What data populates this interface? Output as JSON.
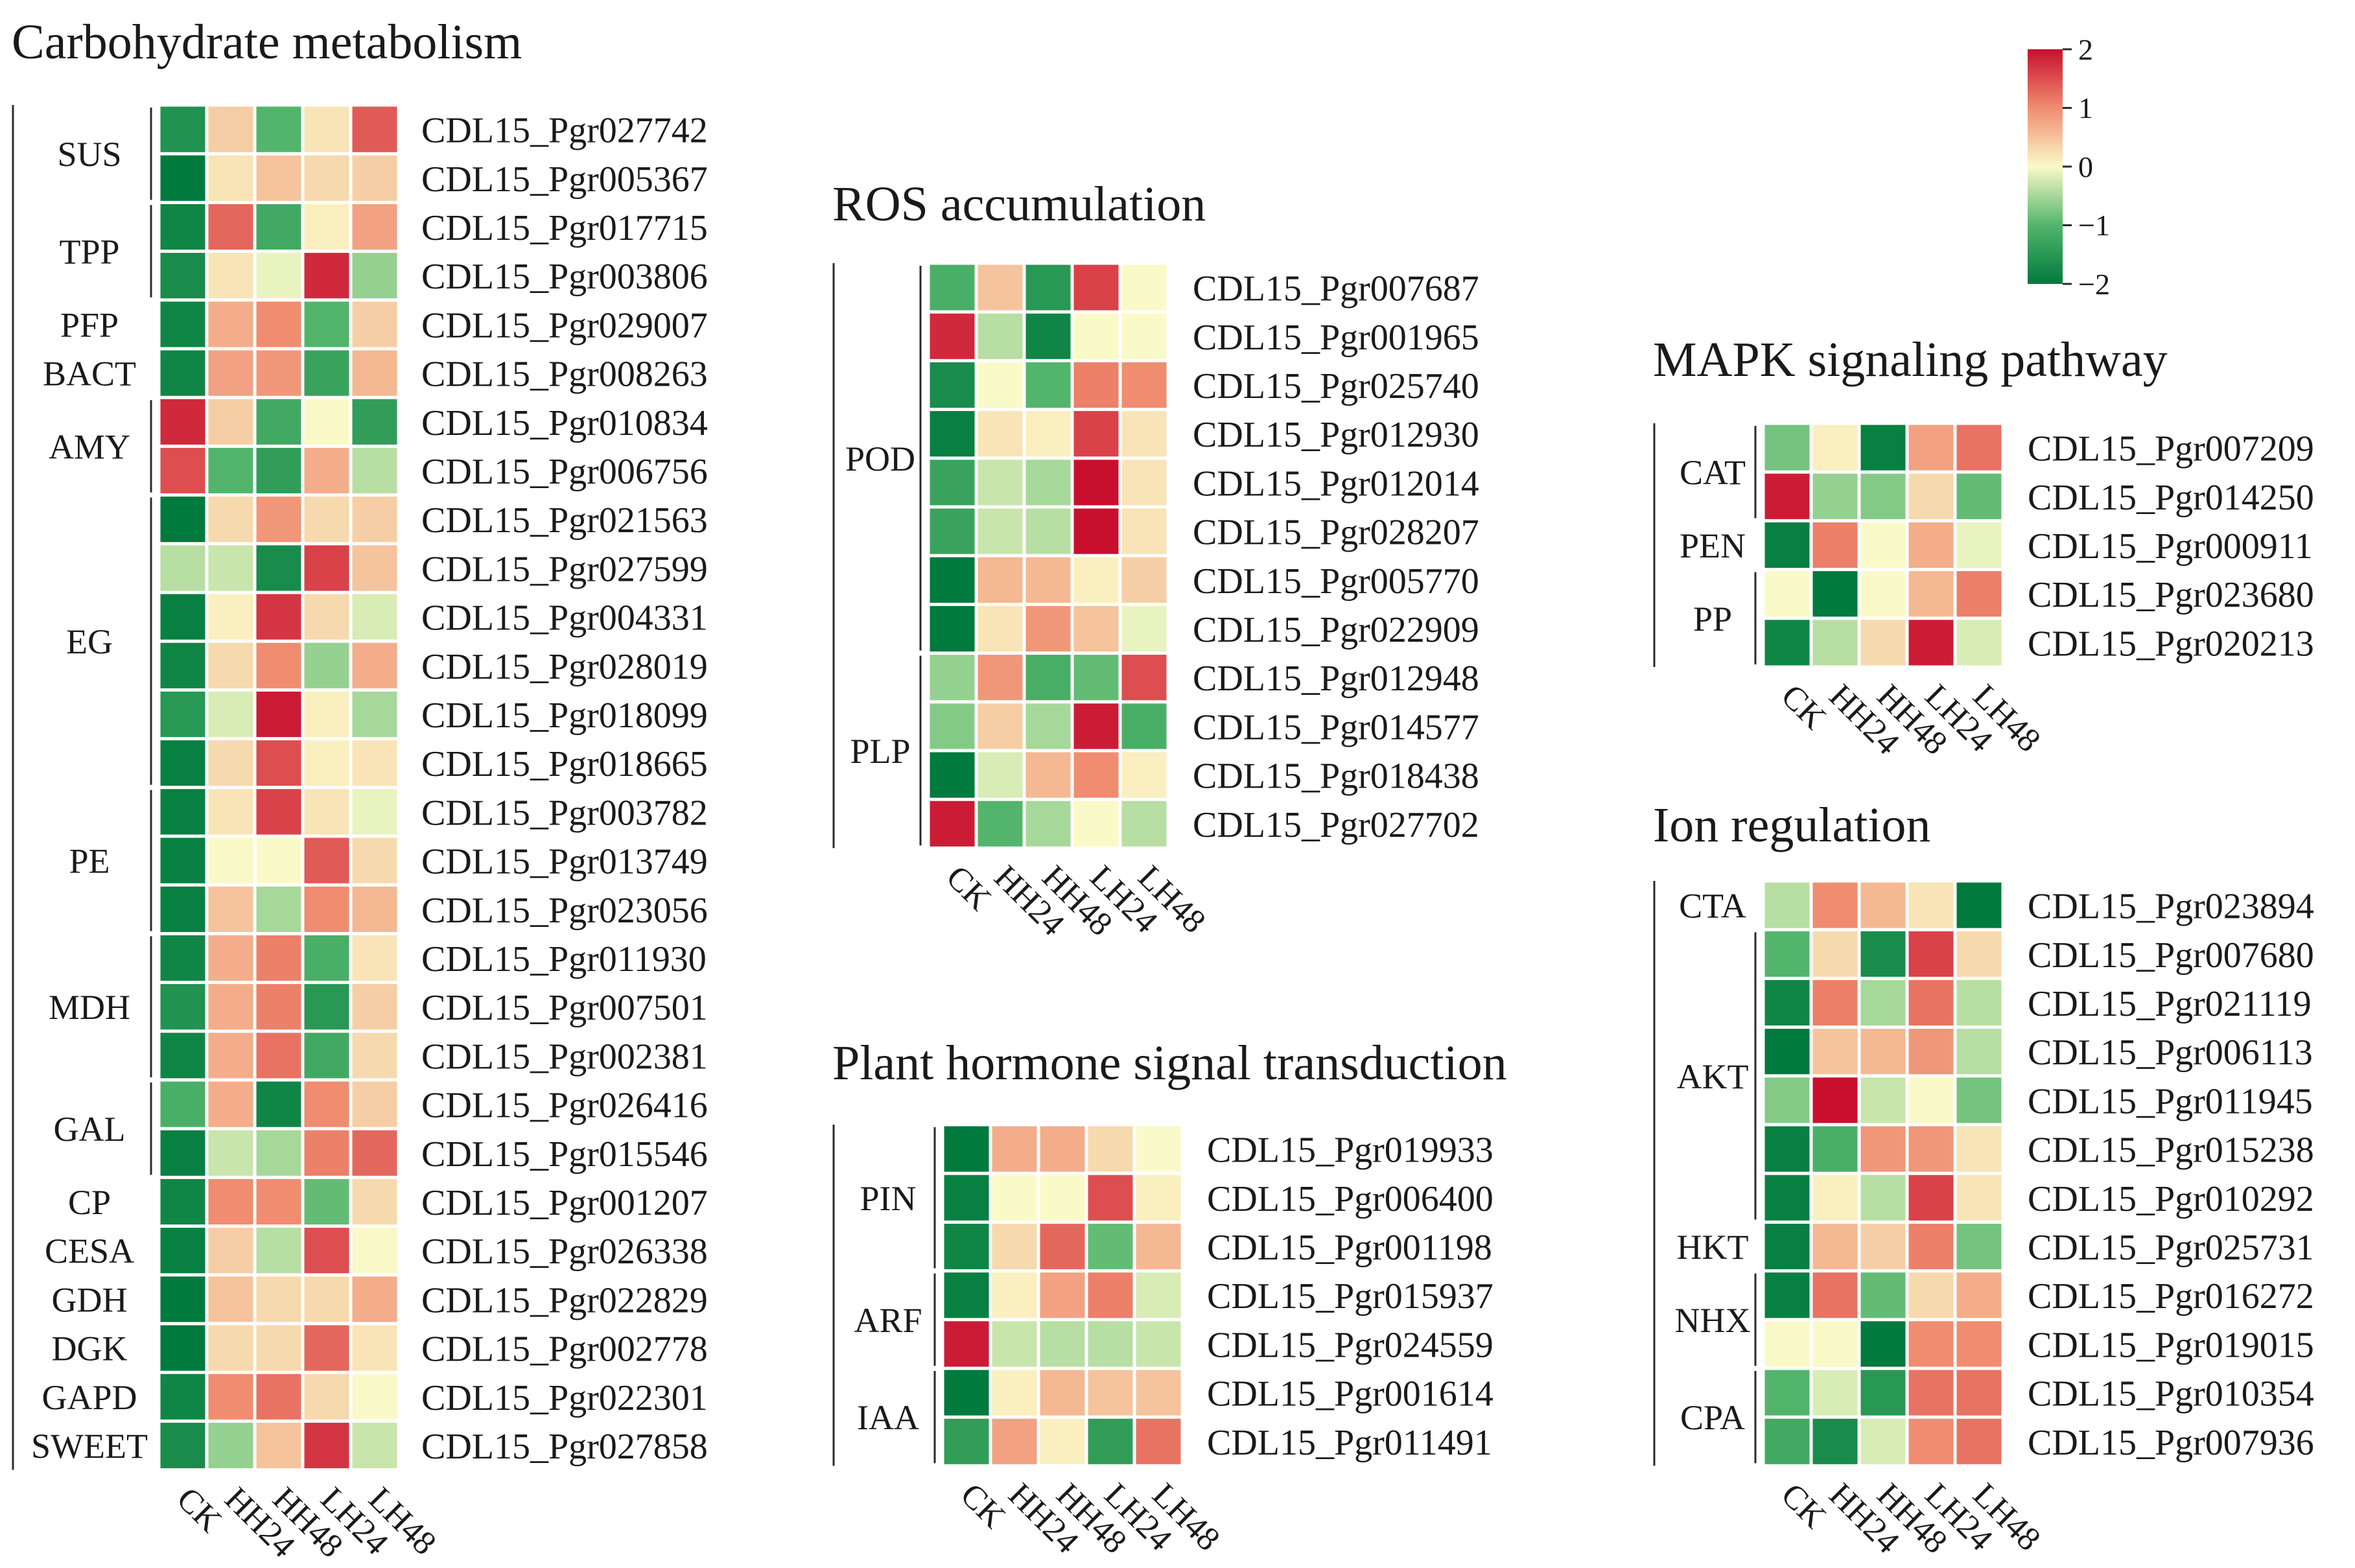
{
  "colorbar": {
    "ticks": [
      "2",
      "1",
      "0",
      "−1",
      "−2"
    ],
    "tick_values": [
      2,
      1,
      0,
      -1,
      -2
    ],
    "range": [
      -2,
      2
    ],
    "colors": [
      "#007a3d",
      "#52b56b",
      "#fafac8",
      "#f08c70",
      "#c8102e"
    ]
  },
  "chart_data": {
    "type": "heatmap",
    "value_range": [
      -2,
      2
    ],
    "columns": [
      "CK",
      "HH24",
      "HH48",
      "LH24",
      "LH48"
    ],
    "panels": [
      {
        "title": "Carbohydrate metabolism",
        "rows": [
          {
            "group": "SUS",
            "gene": "CDL15_Pgr027742",
            "values": [
              -1.6,
              0.4,
              -1.0,
              0.2,
              1.4
            ]
          },
          {
            "group": "SUS",
            "gene": "CDL15_Pgr005367",
            "values": [
              -2.0,
              0.2,
              0.5,
              0.3,
              0.4
            ]
          },
          {
            "group": "TPP",
            "gene": "CDL15_Pgr017715",
            "values": [
              -1.8,
              1.3,
              -1.2,
              0.1,
              0.8
            ]
          },
          {
            "group": "TPP",
            "gene": "CDL15_Pgr003806",
            "values": [
              -1.7,
              0.2,
              -0.1,
              1.8,
              -0.6
            ]
          },
          {
            "group": "PFP",
            "gene": "CDL15_Pgr029007",
            "values": [
              -1.8,
              0.7,
              1.0,
              -1.0,
              0.4
            ]
          },
          {
            "group": "BACT",
            "gene": "CDL15_Pgr008263",
            "values": [
              -1.8,
              0.8,
              0.9,
              -1.3,
              0.6
            ]
          },
          {
            "group": "AMY",
            "gene": "CDL15_Pgr010834",
            "values": [
              1.8,
              0.4,
              -1.2,
              0.0,
              -1.4
            ]
          },
          {
            "group": "AMY",
            "gene": "CDL15_Pgr006756",
            "values": [
              1.5,
              -1.0,
              -1.4,
              0.7,
              -0.4
            ]
          },
          {
            "group": "EG",
            "gene": "CDL15_Pgr021563",
            "values": [
              -2.0,
              0.3,
              0.9,
              0.3,
              0.4
            ]
          },
          {
            "group": "EG",
            "gene": "CDL15_Pgr027599",
            "values": [
              -0.4,
              -0.3,
              -1.7,
              1.6,
              0.5
            ]
          },
          {
            "group": "EG",
            "gene": "CDL15_Pgr004331",
            "values": [
              -1.9,
              0.1,
              1.7,
              0.3,
              -0.2
            ]
          },
          {
            "group": "EG",
            "gene": "CDL15_Pgr028019",
            "values": [
              -1.8,
              0.3,
              1.0,
              -0.6,
              0.7
            ]
          },
          {
            "group": "EG",
            "gene": "CDL15_Pgr018099",
            "values": [
              -1.5,
              -0.2,
              1.9,
              0.1,
              -0.5
            ]
          },
          {
            "group": "EG",
            "gene": "CDL15_Pgr018665",
            "values": [
              -1.9,
              0.3,
              1.5,
              0.1,
              0.2
            ]
          },
          {
            "group": "PE",
            "gene": "CDL15_Pgr003782",
            "values": [
              -1.9,
              0.2,
              1.6,
              0.2,
              -0.1
            ]
          },
          {
            "group": "PE",
            "gene": "CDL15_Pgr013749",
            "values": [
              -1.9,
              0.0,
              0.0,
              1.4,
              0.3
            ]
          },
          {
            "group": "PE",
            "gene": "CDL15_Pgr023056",
            "values": [
              -1.9,
              0.5,
              -0.5,
              1.0,
              0.6
            ]
          },
          {
            "group": "MDH",
            "gene": "CDL15_Pgr011930",
            "values": [
              -1.8,
              0.7,
              1.1,
              -1.1,
              0.2
            ]
          },
          {
            "group": "MDH",
            "gene": "CDL15_Pgr007501",
            "values": [
              -1.6,
              0.7,
              1.1,
              -1.5,
              0.4
            ]
          },
          {
            "group": "MDH",
            "gene": "CDL15_Pgr002381",
            "values": [
              -1.8,
              0.7,
              1.2,
              -1.2,
              0.3
            ]
          },
          {
            "group": "GAL",
            "gene": "CDL15_Pgr026416",
            "values": [
              -1.1,
              0.7,
              -1.8,
              1.0,
              0.4
            ]
          },
          {
            "group": "GAL",
            "gene": "CDL15_Pgr015546",
            "values": [
              -1.9,
              -0.3,
              -0.5,
              1.1,
              1.3
            ]
          },
          {
            "group": "CP",
            "gene": "CDL15_Pgr001207",
            "values": [
              -1.8,
              1.0,
              1.0,
              -0.9,
              0.3
            ]
          },
          {
            "group": "CESA",
            "gene": "CDL15_Pgr026338",
            "values": [
              -1.9,
              0.4,
              -0.4,
              1.5,
              0.0
            ]
          },
          {
            "group": "GDH",
            "gene": "CDL15_Pgr022829",
            "values": [
              -2.0,
              0.5,
              0.3,
              0.3,
              0.7
            ]
          },
          {
            "group": "DGK",
            "gene": "CDL15_Pgr002778",
            "values": [
              -2.0,
              0.3,
              0.3,
              1.3,
              0.2
            ]
          },
          {
            "group": "GAPD",
            "gene": "CDL15_Pgr022301",
            "values": [
              -1.8,
              1.0,
              1.2,
              0.3,
              0.0
            ]
          },
          {
            "group": "SWEET",
            "gene": "CDL15_Pgr027858",
            "values": [
              -1.7,
              -0.6,
              0.5,
              1.7,
              -0.3
            ]
          }
        ]
      },
      {
        "title": "ROS accumulation",
        "rows": [
          {
            "group": "POD",
            "gene": "CDL15_Pgr007687",
            "values": [
              -1.1,
              0.5,
              -1.5,
              1.6,
              0.0
            ]
          },
          {
            "group": "POD",
            "gene": "CDL15_Pgr001965",
            "values": [
              1.8,
              -0.4,
              -1.8,
              0.0,
              0.0
            ]
          },
          {
            "group": "POD",
            "gene": "CDL15_Pgr025740",
            "values": [
              -1.7,
              0.0,
              -1.0,
              1.1,
              1.0
            ]
          },
          {
            "group": "POD",
            "gene": "CDL15_Pgr012930",
            "values": [
              -1.9,
              0.2,
              0.1,
              1.6,
              0.2
            ]
          },
          {
            "group": "POD",
            "gene": "CDL15_Pgr012014",
            "values": [
              -1.3,
              -0.3,
              -0.5,
              2.0,
              0.2
            ]
          },
          {
            "group": "POD",
            "gene": "CDL15_Pgr028207",
            "values": [
              -1.3,
              -0.3,
              -0.4,
              2.0,
              0.2
            ]
          },
          {
            "group": "POD",
            "gene": "CDL15_Pgr005770",
            "values": [
              -2.0,
              0.6,
              0.6,
              0.1,
              0.4
            ]
          },
          {
            "group": "POD",
            "gene": "CDL15_Pgr022909",
            "values": [
              -2.0,
              0.2,
              0.9,
              0.5,
              -0.1
            ]
          },
          {
            "group": "PLP",
            "gene": "CDL15_Pgr012948",
            "values": [
              -0.6,
              0.9,
              -1.1,
              -0.9,
              1.5
            ]
          },
          {
            "group": "PLP",
            "gene": "CDL15_Pgr014577",
            "values": [
              -0.7,
              0.4,
              -0.5,
              1.9,
              -1.1
            ]
          },
          {
            "group": "PLP",
            "gene": "CDL15_Pgr018438",
            "values": [
              -2.0,
              -0.2,
              0.6,
              1.0,
              0.1
            ]
          },
          {
            "group": "PLP",
            "gene": "CDL15_Pgr027702",
            "values": [
              1.9,
              -1.0,
              -0.5,
              0.0,
              -0.4
            ]
          }
        ]
      },
      {
        "title": "MAPK signaling pathway",
        "rows": [
          {
            "group": "CAT",
            "gene": "CDL15_Pgr007209",
            "values": [
              -0.8,
              0.1,
              -1.9,
              0.8,
              1.2
            ]
          },
          {
            "group": "CAT",
            "gene": "CDL15_Pgr014250",
            "values": [
              1.9,
              -0.6,
              -0.7,
              0.3,
              -0.9
            ]
          },
          {
            "group": "PEN",
            "gene": "CDL15_Pgr000911",
            "values": [
              -1.9,
              1.1,
              0.0,
              0.7,
              -0.1
            ]
          },
          {
            "group": "PP",
            "gene": "CDL15_Pgr023680",
            "values": [
              0.0,
              -2.0,
              0.0,
              0.6,
              1.1
            ]
          },
          {
            "group": "PP",
            "gene": "CDL15_Pgr020213",
            "values": [
              -1.8,
              -0.4,
              0.3,
              1.9,
              -0.2
            ]
          }
        ]
      },
      {
        "title": "Plant hormone signal transduction",
        "rows": [
          {
            "group": "PIN",
            "gene": "CDL15_Pgr019933",
            "values": [
              -2.0,
              0.7,
              0.7,
              0.3,
              0.0
            ]
          },
          {
            "group": "PIN",
            "gene": "CDL15_Pgr006400",
            "values": [
              -1.9,
              0.0,
              0.0,
              1.5,
              0.1
            ]
          },
          {
            "group": "PIN",
            "gene": "CDL15_Pgr001198",
            "values": [
              -1.8,
              0.3,
              1.3,
              -0.9,
              0.6
            ]
          },
          {
            "group": "ARF",
            "gene": "CDL15_Pgr015937",
            "values": [
              -1.9,
              0.1,
              0.8,
              1.1,
              -0.2
            ]
          },
          {
            "group": "ARF",
            "gene": "CDL15_Pgr024559",
            "values": [
              1.9,
              -0.3,
              -0.4,
              -0.4,
              -0.3
            ]
          },
          {
            "group": "IAA",
            "gene": "CDL15_Pgr001614",
            "values": [
              -2.0,
              0.1,
              0.6,
              0.5,
              0.5
            ]
          },
          {
            "group": "IAA",
            "gene": "CDL15_Pgr011491",
            "values": [
              -1.4,
              0.8,
              0.1,
              -1.4,
              1.2
            ]
          }
        ]
      },
      {
        "title": "Ion regulation",
        "rows": [
          {
            "group": "CTA",
            "gene": "CDL15_Pgr023894",
            "values": [
              -0.4,
              1.0,
              0.6,
              0.2,
              -2.0
            ]
          },
          {
            "group": "AKT",
            "gene": "CDL15_Pgr007680",
            "values": [
              -1.0,
              0.3,
              -1.7,
              1.6,
              0.3
            ]
          },
          {
            "group": "AKT",
            "gene": "CDL15_Pgr021119",
            "values": [
              -1.8,
              1.1,
              -0.5,
              1.2,
              -0.4
            ]
          },
          {
            "group": "AKT",
            "gene": "CDL15_Pgr006113",
            "values": [
              -2.0,
              0.5,
              0.6,
              0.9,
              -0.4
            ]
          },
          {
            "group": "AKT",
            "gene": "CDL15_Pgr011945",
            "values": [
              -0.7,
              2.0,
              -0.3,
              0.0,
              -0.8
            ]
          },
          {
            "group": "AKT",
            "gene": "CDL15_Pgr015238",
            "values": [
              -1.9,
              -1.1,
              0.9,
              0.9,
              0.2
            ]
          },
          {
            "group": "AKT",
            "gene": "CDL15_Pgr010292",
            "values": [
              -1.9,
              0.1,
              -0.4,
              1.6,
              0.2
            ]
          },
          {
            "group": "HKT",
            "gene": "CDL15_Pgr025731",
            "values": [
              -1.9,
              0.6,
              0.4,
              1.1,
              -0.8
            ]
          },
          {
            "group": "NHX",
            "gene": "CDL15_Pgr016272",
            "values": [
              -1.9,
              1.2,
              -0.9,
              0.3,
              0.7
            ]
          },
          {
            "group": "NHX",
            "gene": "CDL15_Pgr019015",
            "values": [
              0.0,
              0.0,
              -2.0,
              1.0,
              1.0
            ]
          },
          {
            "group": "CPA",
            "gene": "CDL15_Pgr010354",
            "values": [
              -1.0,
              -0.2,
              -1.5,
              1.2,
              1.2
            ]
          },
          {
            "group": "CPA",
            "gene": "CDL15_Pgr007936",
            "values": [
              -1.2,
              -1.7,
              -0.2,
              1.0,
              1.2
            ]
          }
        ]
      }
    ]
  }
}
